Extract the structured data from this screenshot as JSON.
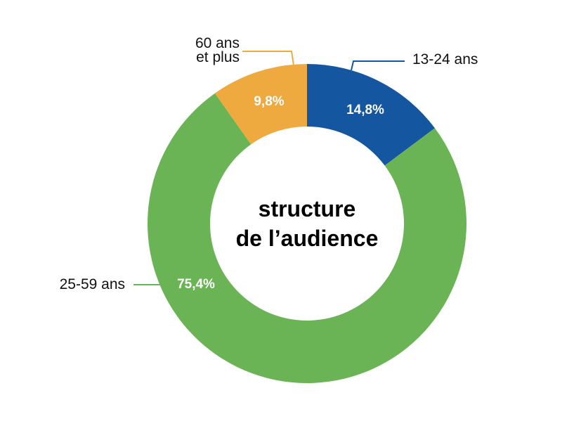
{
  "chart_data": {
    "type": "donut",
    "title": "structure\nde l’audience",
    "categories": [
      "13-24 ans",
      "25-59 ans",
      "60 ans\net plus"
    ],
    "values": [
      14.8,
      75.4,
      9.8
    ],
    "value_labels": [
      "14,8%",
      "75,4%",
      "9,8%"
    ],
    "colors": [
      "#1457a0",
      "#6ab455",
      "#eeaa3f"
    ]
  }
}
